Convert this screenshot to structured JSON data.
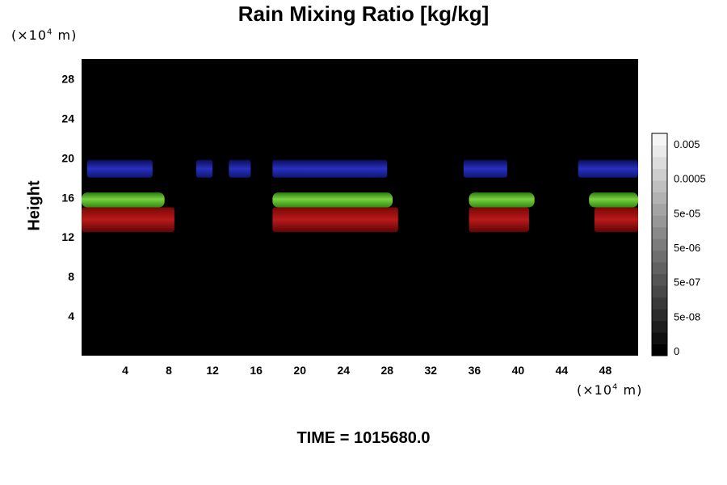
{
  "title": "Rain Mixing Ratio [kg/kg]",
  "y_unit": {
    "prefix": "(×10",
    "exp": "4",
    "suffix": " m)"
  },
  "x_unit": {
    "prefix": "(×10",
    "exp": "4",
    "suffix": " m)"
  },
  "ylabel": "Height",
  "time_label": "TIME = 1015680.0",
  "chart_data": {
    "type": "heatmap",
    "title": "Rain Mixing Ratio [kg/kg]",
    "xlabel": "(×10^4 m)",
    "ylabel": "Height",
    "xlim": [
      0,
      51
    ],
    "ylim": [
      0,
      30
    ],
    "x_ticks": [
      4,
      8,
      12,
      16,
      20,
      24,
      28,
      32,
      36,
      40,
      44,
      48
    ],
    "y_ticks": [
      4,
      8,
      12,
      16,
      20,
      24,
      28
    ],
    "background_color": "#000000",
    "colorbar": {
      "labels": [
        "0.005",
        "0.0005",
        "5e-05",
        "5e-06",
        "5e-07",
        "5e-08",
        "0"
      ],
      "colors": [
        "#000000",
        "#101010",
        "#1e1e1e",
        "#2c2c2c",
        "#3a3a3a",
        "#484848",
        "#555555",
        "#626262",
        "#6f6f6f",
        "#7c7c7c",
        "#898989",
        "#979797",
        "#a4a4a4",
        "#b2b2b2",
        "#c0c0c0",
        "#cecece",
        "#dcdcdc",
        "#eaeaea",
        "#f5f5f5"
      ]
    },
    "bands": [
      {
        "name": "blue",
        "color": "#1a22a8",
        "segments": [
          [
            0.5,
            6.5
          ],
          [
            10.5,
            12
          ],
          [
            13.5,
            15.5
          ],
          [
            17.5,
            28
          ],
          [
            35,
            39
          ],
          [
            45.5,
            51
          ]
        ],
        "y_range": [
          18,
          19.8
        ]
      },
      {
        "name": "green",
        "color": "#3c9a18",
        "segments": [
          [
            0,
            7.6
          ],
          [
            17.5,
            28.5
          ],
          [
            35.5,
            41.5
          ],
          [
            46.5,
            51
          ]
        ],
        "y_range": [
          15,
          16.5
        ]
      },
      {
        "name": "red",
        "color": "#9a1010",
        "segments": [
          [
            0,
            8.5
          ],
          [
            17.5,
            29
          ],
          [
            35.5,
            41
          ],
          [
            47,
            51
          ]
        ],
        "y_range": [
          12.5,
          15
        ]
      }
    ]
  }
}
